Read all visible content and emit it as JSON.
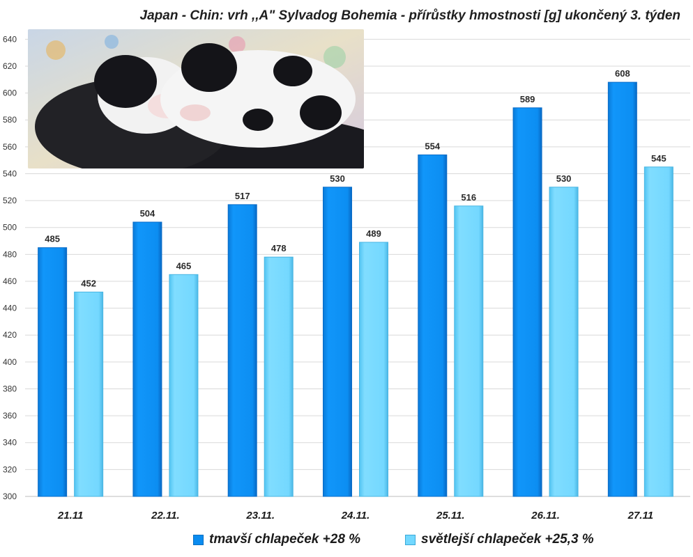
{
  "chart_data": {
    "type": "bar",
    "title": "Japan - Chin: vrh ,,A\" Sylvadog Bohemia - přírůstky hmostnosti [g] ukončený 3. týden",
    "categories": [
      "21.11",
      "22.11.",
      "23.11.",
      "24.11.",
      "25.11.",
      "26.11.",
      "27.11"
    ],
    "series": [
      {
        "name": "tmavší chlapeček  +28 %",
        "color": "#0a8cf0",
        "values": [
          485,
          504,
          517,
          530,
          554,
          589,
          608
        ]
      },
      {
        "name": "světlejší chlapeček  +25,3 %",
        "color": "#72d8ff",
        "values": [
          452,
          465,
          478,
          489,
          516,
          530,
          545
        ]
      }
    ],
    "ylim": [
      300,
      650
    ],
    "yticks": [
      300,
      320,
      340,
      360,
      380,
      400,
      420,
      440,
      460,
      480,
      500,
      520,
      540,
      560,
      580,
      600,
      620,
      640
    ],
    "grid": true,
    "legend_position": "bottom",
    "xlabel": "",
    "ylabel": ""
  },
  "photo": {
    "icon": "puppies-photo"
  }
}
